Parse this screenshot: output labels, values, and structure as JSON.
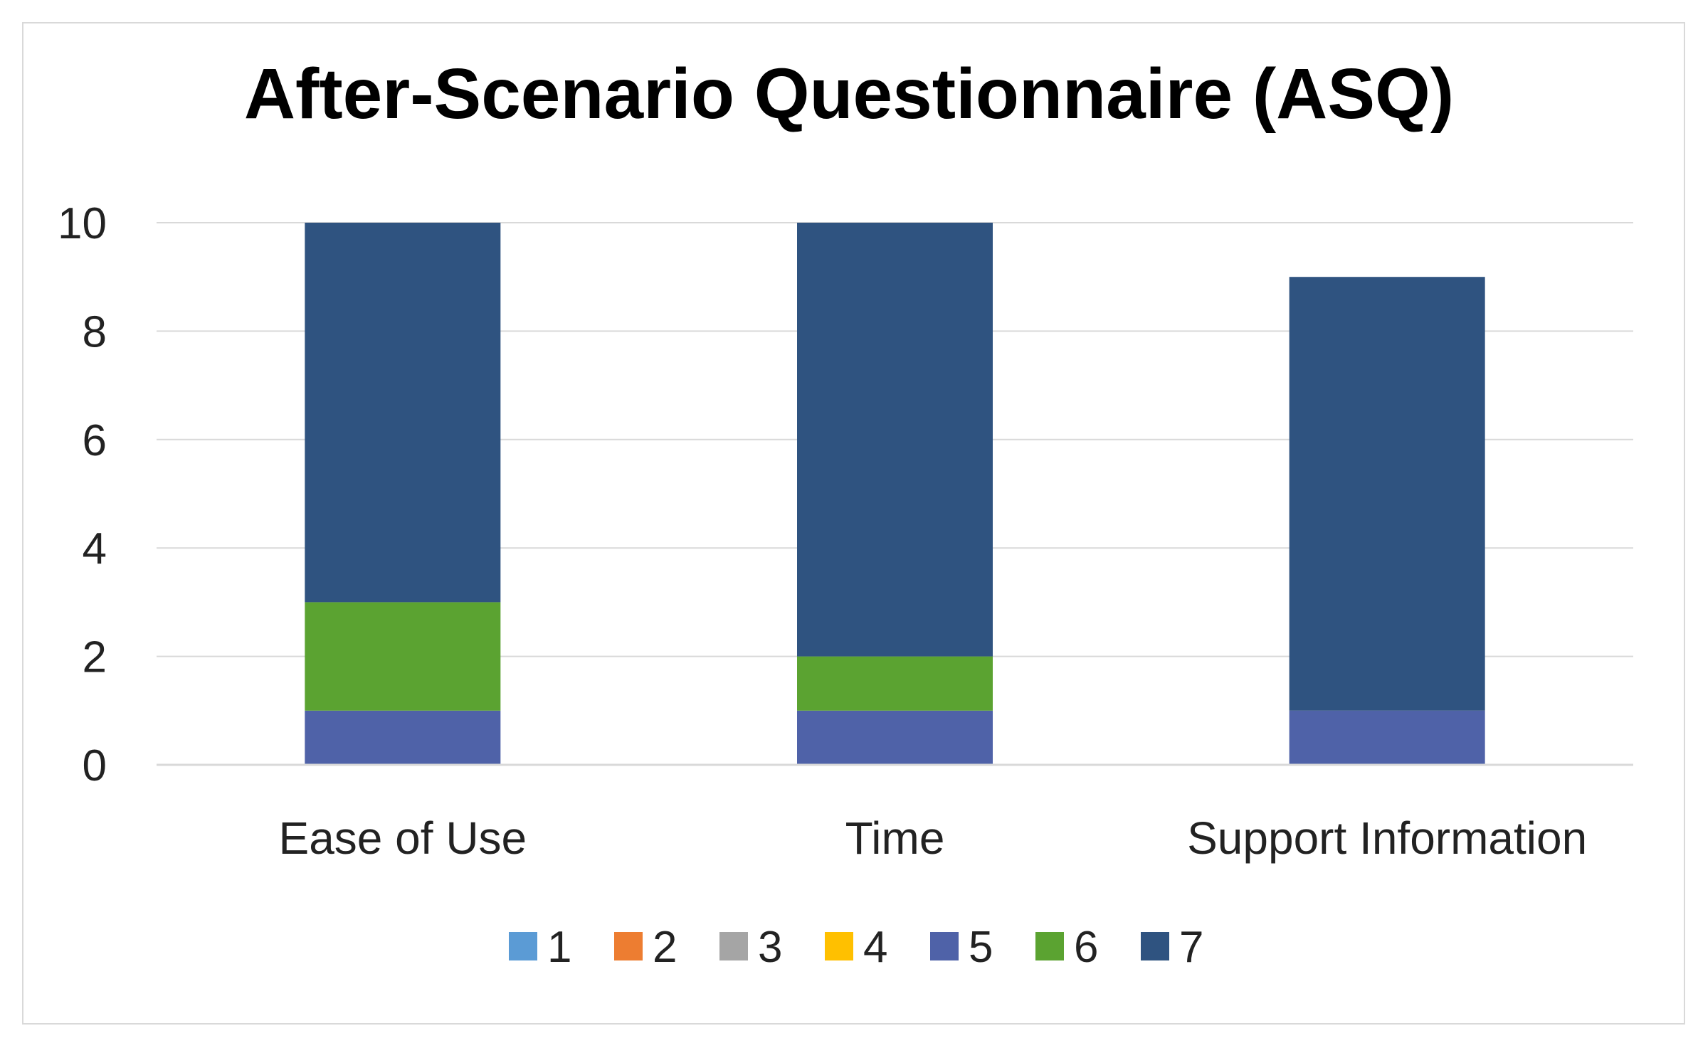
{
  "chart_data": {
    "type": "bar",
    "stacked": true,
    "title": "After-Scenario Questionnaire (ASQ)",
    "xlabel": "",
    "ylabel": "",
    "categories": [
      "Ease of Use",
      "Time",
      "Support Information"
    ],
    "ylim": [
      0,
      10
    ],
    "yticks": [
      0,
      2,
      4,
      6,
      8,
      10
    ],
    "grid": true,
    "legend_position": "bottom",
    "series": [
      {
        "name": "1",
        "color": "#5b9bd5",
        "values": [
          0,
          0,
          0
        ]
      },
      {
        "name": "2",
        "color": "#ed7d31",
        "values": [
          0,
          0,
          0
        ]
      },
      {
        "name": "3",
        "color": "#a5a5a5",
        "values": [
          0,
          0,
          0
        ]
      },
      {
        "name": "4",
        "color": "#ffc000",
        "values": [
          0,
          0,
          0
        ]
      },
      {
        "name": "5",
        "color": "#4f62a8",
        "values": [
          1,
          1,
          1
        ]
      },
      {
        "name": "6",
        "color": "#5ba331",
        "values": [
          2,
          1,
          0
        ]
      },
      {
        "name": "7",
        "color": "#2f5380",
        "values": [
          7,
          8,
          8
        ]
      }
    ]
  }
}
